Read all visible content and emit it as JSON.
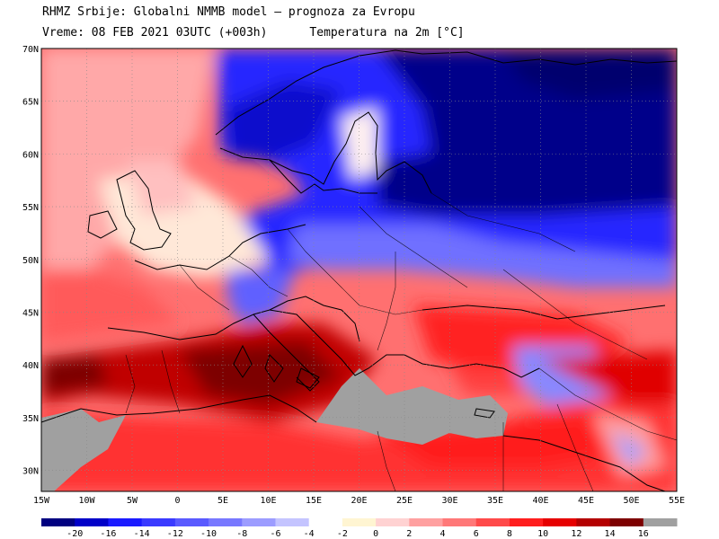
{
  "header": {
    "line1": "RHMZ Srbije: Globalni NMMB model — prognoza za Evropu",
    "line2": "Vreme: 08 FEB 2021 03UTC (+003h)      Temperatura na 2m [°C]"
  },
  "map_data": {
    "region": "Europe",
    "lon_range": [
      -15,
      55
    ],
    "lat_range": [
      28,
      70
    ],
    "lat_labels": [
      "70N",
      "65N",
      "60N",
      "55N",
      "50N",
      "45N",
      "40N",
      "35N",
      "30N"
    ],
    "lat_values": [
      70,
      65,
      60,
      55,
      50,
      45,
      40,
      35,
      30
    ],
    "lon_labels": [
      "15W",
      "10W",
      "5W",
      "0",
      "5E",
      "10E",
      "15E",
      "20E",
      "25E",
      "30E",
      "35E",
      "40E",
      "45E",
      "50E",
      "55E"
    ],
    "lon_values": [
      -15,
      -10,
      -5,
      0,
      5,
      10,
      15,
      20,
      25,
      30,
      35,
      40,
      45,
      50,
      55
    ]
  },
  "legend": {
    "labels": [
      "-20",
      "-16",
      "-14",
      "-12",
      "-10",
      "-8",
      "-6",
      "-4",
      "-2",
      "0",
      "2",
      "4",
      "6",
      "8",
      "10",
      "12",
      "14",
      "16"
    ],
    "colors": [
      "#000080",
      "#0000c8",
      "#1a1aff",
      "#3a3aff",
      "#5a5aff",
      "#7878ff",
      "#9c9cff",
      "#c4c4ff",
      "#ffffff",
      "#fff5d2",
      "#ffd2d2",
      "#ffa0a0",
      "#ff7878",
      "#ff4a4a",
      "#ff1e1e",
      "#e60000",
      "#b40000",
      "#7d0000",
      "#a0a0a0"
    ]
  },
  "colors": {
    "land_mask": "#a0a0a0",
    "boundary": "#000000",
    "gridline": "#888888"
  }
}
